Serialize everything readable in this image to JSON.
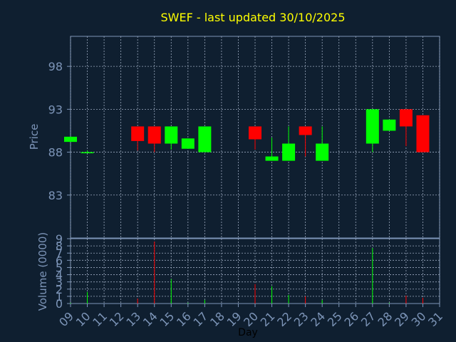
{
  "chart_data": {
    "type": "candlestick",
    "title": "SWEF - last updated 30/10/2025",
    "price_panel": {
      "ylabel": "Price",
      "yticks": [
        83,
        88,
        93,
        98
      ],
      "ylim": [
        78,
        101.5
      ],
      "grid": true
    },
    "volume_panel": {
      "ylabel": "Volume (0000)",
      "yticks": [
        0,
        1,
        2,
        3,
        4,
        5,
        6,
        7,
        8,
        9
      ],
      "ylim": [
        0,
        9
      ],
      "grid": true
    },
    "xlabel": "Day",
    "xticks": [
      "09",
      "10",
      "11",
      "12",
      "13",
      "14",
      "15",
      "16",
      "17",
      "18",
      "19",
      "20",
      "21",
      "22",
      "23",
      "24",
      "25",
      "26",
      "27",
      "28",
      "29",
      "30",
      "31"
    ],
    "up_color": "#00ff00",
    "down_color": "#ff0000",
    "background": "#0f1f30",
    "candles": [
      {
        "day": "09",
        "open": 89.2,
        "high": 89.8,
        "low": 89.2,
        "close": 89.8,
        "volume": 0.1
      },
      {
        "day": "10",
        "open": 87.9,
        "high": 88.2,
        "low": 87.9,
        "close": 88.0,
        "volume": 1.6
      },
      {
        "day": "13",
        "open": 91.0,
        "high": 91.0,
        "low": 88.2,
        "close": 89.3,
        "volume": 0.7
      },
      {
        "day": "14",
        "open": 91.0,
        "high": 91.0,
        "low": 88.0,
        "close": 89.0,
        "volume": 8.6
      },
      {
        "day": "15",
        "open": 89.0,
        "high": 91.0,
        "low": 88.3,
        "close": 91.0,
        "volume": 3.4
      },
      {
        "day": "16",
        "open": 88.4,
        "high": 89.6,
        "low": 88.4,
        "close": 89.6,
        "volume": 0.1
      },
      {
        "day": "17",
        "open": 88.0,
        "high": 91.0,
        "low": 88.0,
        "close": 91.0,
        "volume": 0.5
      },
      {
        "day": "20",
        "open": 91.0,
        "high": 91.0,
        "low": 88.3,
        "close": 89.5,
        "volume": 2.7
      },
      {
        "day": "21",
        "open": 87.0,
        "high": 89.7,
        "low": 87.0,
        "close": 87.5,
        "volume": 2.4
      },
      {
        "day": "22",
        "open": 87.0,
        "high": 91.0,
        "low": 87.0,
        "close": 89.0,
        "volume": 1.2
      },
      {
        "day": "23",
        "open": 91.0,
        "high": 91.0,
        "low": 87.5,
        "close": 90.0,
        "volume": 1.0
      },
      {
        "day": "24",
        "open": 87.0,
        "high": 91.0,
        "low": 87.0,
        "close": 89.0,
        "volume": 0.5
      },
      {
        "day": "27",
        "open": 89.0,
        "high": 93.0,
        "low": 88.0,
        "close": 93.0,
        "volume": 7.7
      },
      {
        "day": "28",
        "open": 90.5,
        "high": 91.8,
        "low": 90.5,
        "close": 91.8,
        "volume": 0.1
      },
      {
        "day": "29",
        "open": 93.0,
        "high": 93.0,
        "low": 88.7,
        "close": 91.0,
        "volume": 1.1
      },
      {
        "day": "30",
        "open": 92.3,
        "high": 92.3,
        "low": 88.0,
        "close": 88.0,
        "volume": 0.8
      }
    ]
  }
}
